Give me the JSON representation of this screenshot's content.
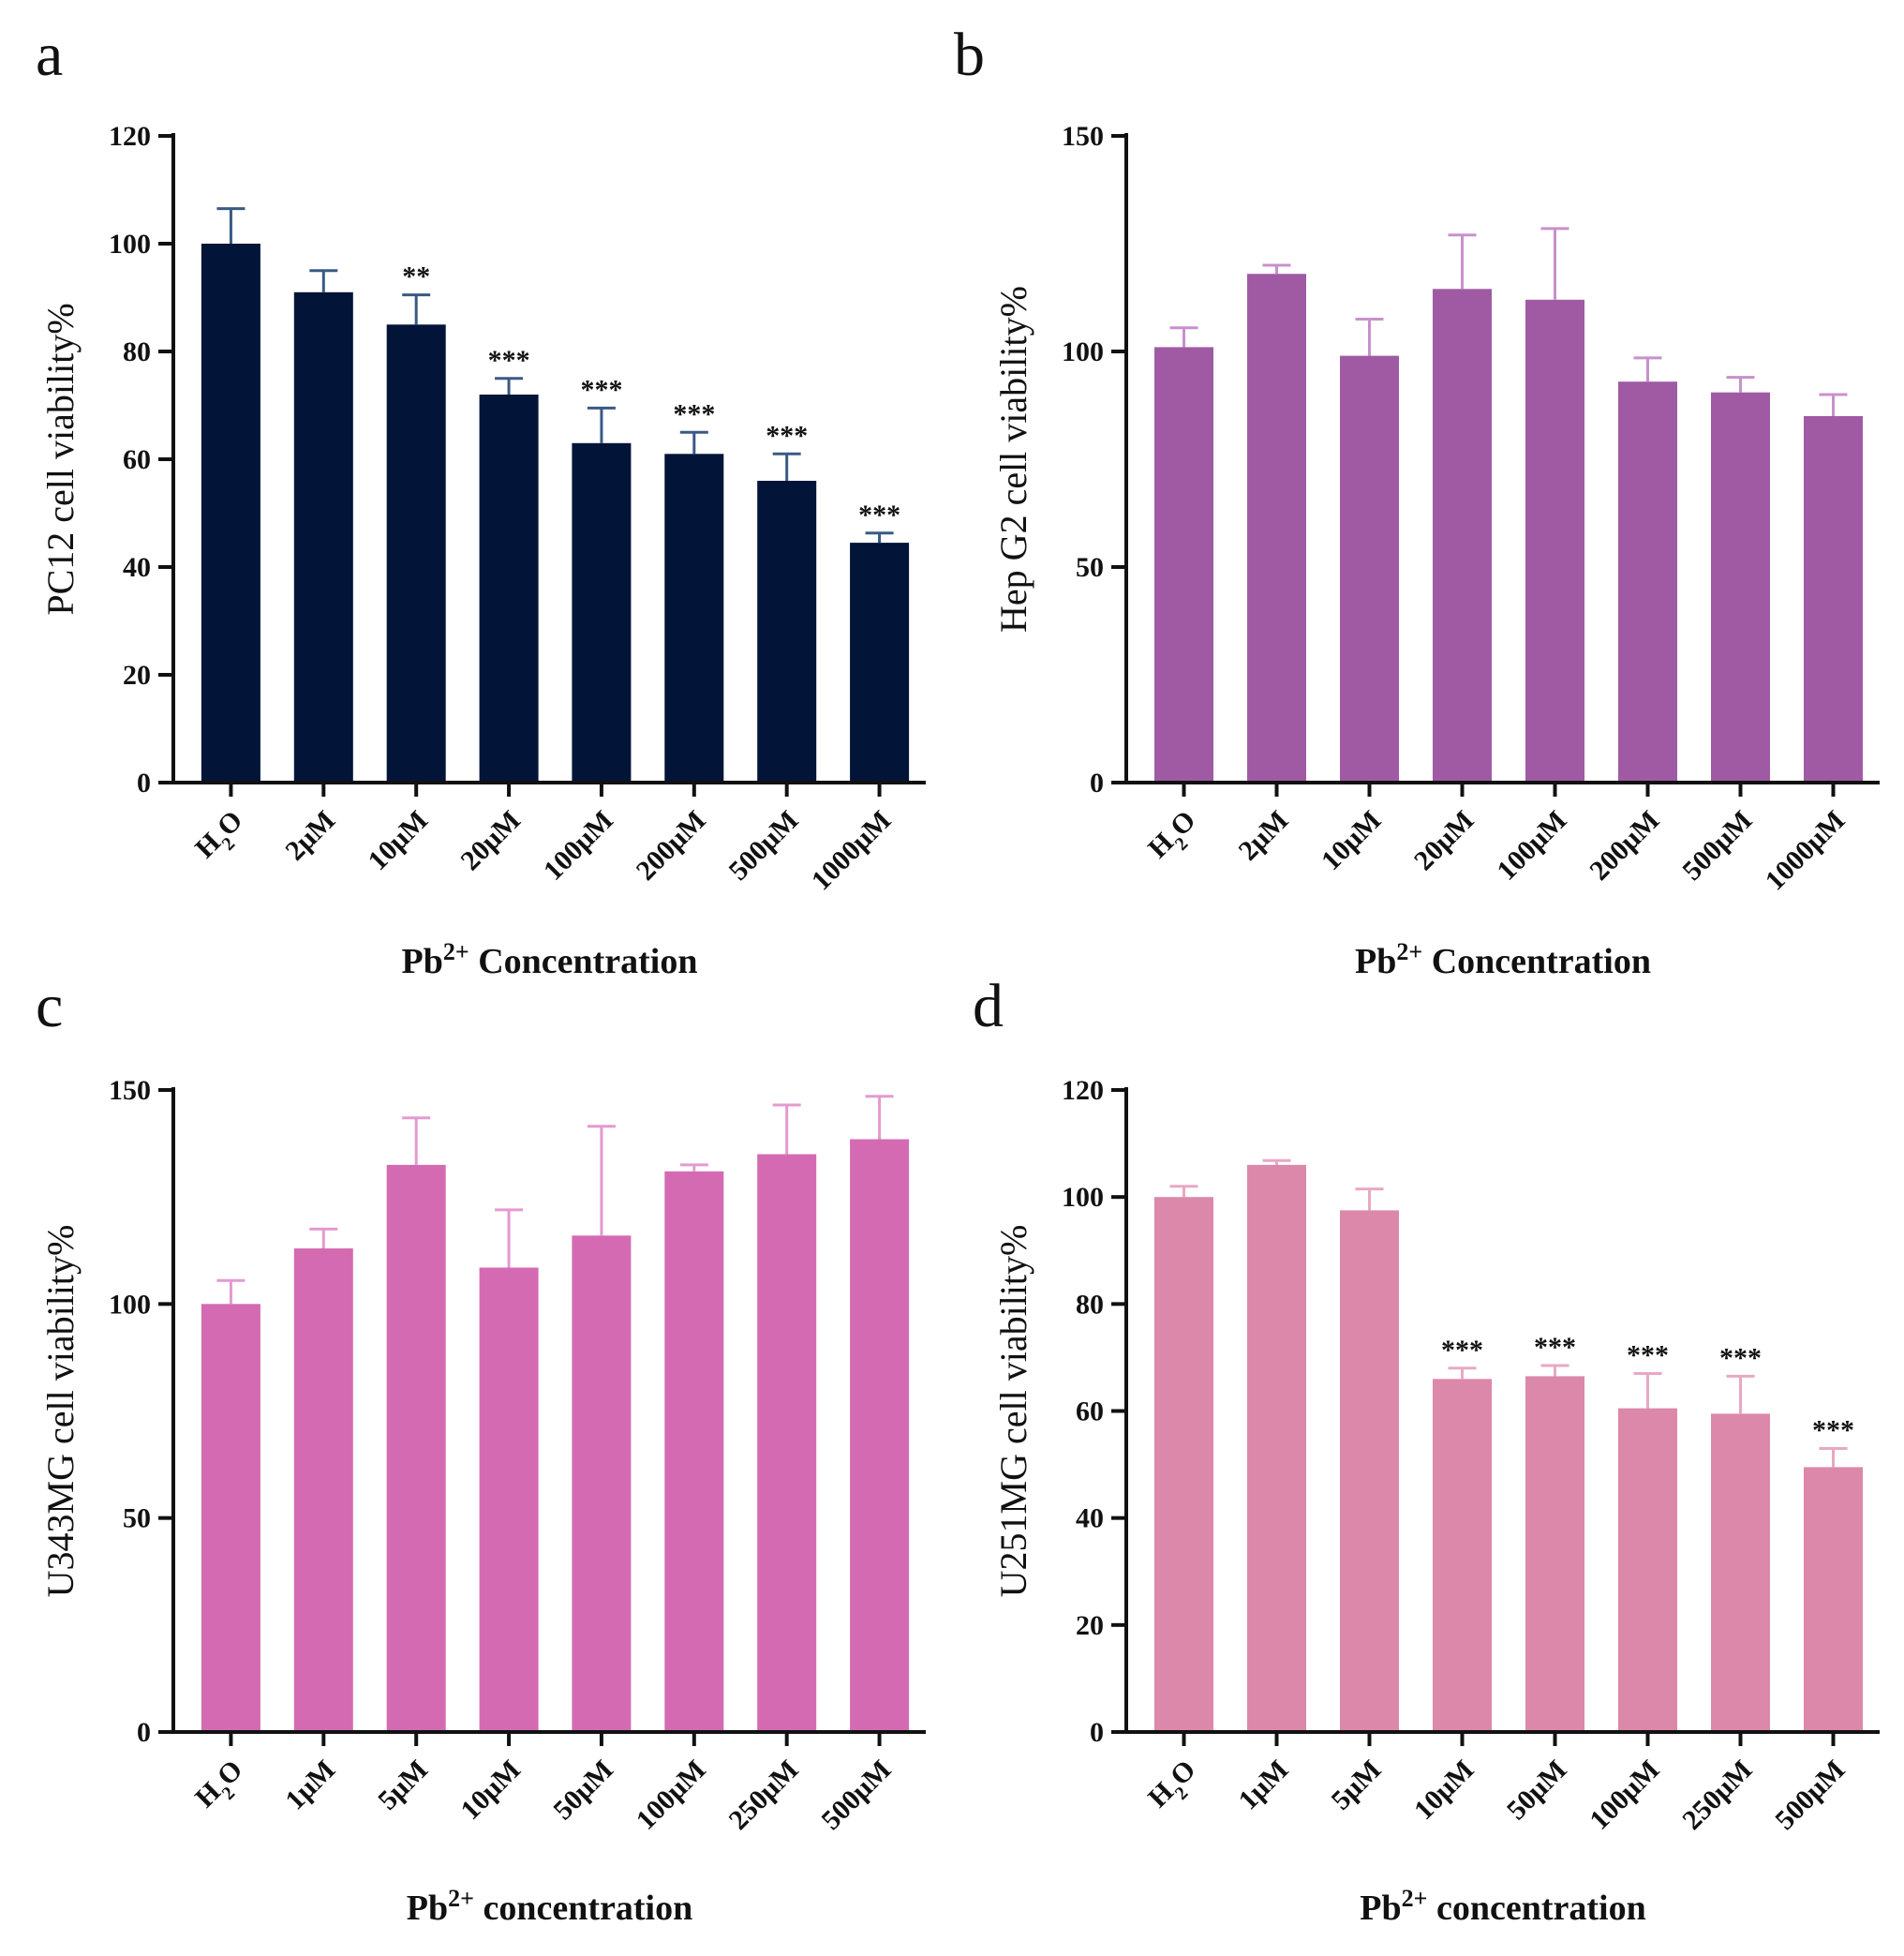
{
  "chart_data": [
    {
      "type": "bar",
      "panel": "a",
      "ylabel": "PC12 cell viability%",
      "xlabel_prefix": "Pb",
      "xlabel_sup": "2+",
      "xlabel_rest": " Concentration",
      "ylim": [
        0,
        120
      ],
      "yticks": [
        0,
        20,
        40,
        60,
        80,
        100,
        120
      ],
      "categories": [
        "H2O",
        "2μM",
        "10μM",
        "20μM",
        "100μM",
        "200μM",
        "500μM",
        "1000μM"
      ],
      "values": [
        100,
        91,
        85,
        72,
        63,
        61,
        56,
        44.5
      ],
      "errors": [
        6.5,
        4,
        5.5,
        3,
        6.5,
        4,
        5,
        1.8
      ],
      "significance": [
        "",
        "",
        "**",
        "***",
        "***",
        "***",
        "***",
        "***"
      ],
      "color": "#021437",
      "error_color": "#3a5a85"
    },
    {
      "type": "bar",
      "panel": "b",
      "ylabel": "Hep G2 cell viability%",
      "xlabel_prefix": "Pb",
      "xlabel_sup": "2+",
      "xlabel_rest": " Concentration",
      "ylim": [
        0,
        150
      ],
      "yticks": [
        0,
        50,
        100,
        150
      ],
      "categories": [
        "H2O",
        "2μM",
        "10μM",
        "20μM",
        "100μM",
        "200μM",
        "500μM",
        "1000μM"
      ],
      "values": [
        101,
        118,
        99,
        114.5,
        112,
        93,
        90.5,
        85
      ],
      "errors": [
        4.5,
        2,
        8.5,
        12.5,
        16.5,
        5.5,
        3.5,
        5
      ],
      "significance": [
        "",
        "",
        "",
        "",
        "",
        "",
        "",
        ""
      ],
      "color": "#a05aa4",
      "error_color": "#c890cc"
    },
    {
      "type": "bar",
      "panel": "c",
      "ylabel": "U343MG cell viability%",
      "xlabel_prefix": "Pb",
      "xlabel_sup": "2+",
      "xlabel_rest": " concentration",
      "ylim": [
        0,
        150
      ],
      "yticks": [
        0,
        50,
        100,
        150
      ],
      "categories": [
        "H2O",
        "1μM",
        "5μM",
        "10μM",
        "50μM",
        "100μM",
        "250μM",
        "500μM"
      ],
      "values": [
        100,
        113,
        132.5,
        108.5,
        116,
        131,
        135,
        138.5
      ],
      "errors": [
        5.5,
        4.5,
        11,
        13.5,
        25.5,
        1.5,
        11.5,
        10
      ],
      "significance": [
        "",
        "",
        "",
        "",
        "",
        "",
        "",
        ""
      ],
      "color": "#d46bb2",
      "error_color": "#e49ad0"
    },
    {
      "type": "bar",
      "panel": "d",
      "ylabel": "U251MG cell viability%",
      "xlabel_prefix": "Pb",
      "xlabel_sup": "2+",
      "xlabel_rest": " concentration",
      "ylim": [
        0,
        120
      ],
      "yticks": [
        0,
        20,
        40,
        60,
        80,
        100,
        120
      ],
      "categories": [
        "H2O",
        "1μM",
        "5μM",
        "10μM",
        "50μM",
        "100μM",
        "250μM",
        "500μM"
      ],
      "values": [
        100,
        106,
        97.5,
        66,
        66.5,
        60.5,
        59.5,
        49.5
      ],
      "errors": [
        2,
        0.8,
        4,
        2,
        2,
        6.5,
        7,
        3.5
      ],
      "significance": [
        "",
        "",
        "",
        "***",
        "***",
        "***",
        "***",
        "***"
      ],
      "color": "#dc88aa",
      "error_color": "#e8a8c4"
    }
  ]
}
